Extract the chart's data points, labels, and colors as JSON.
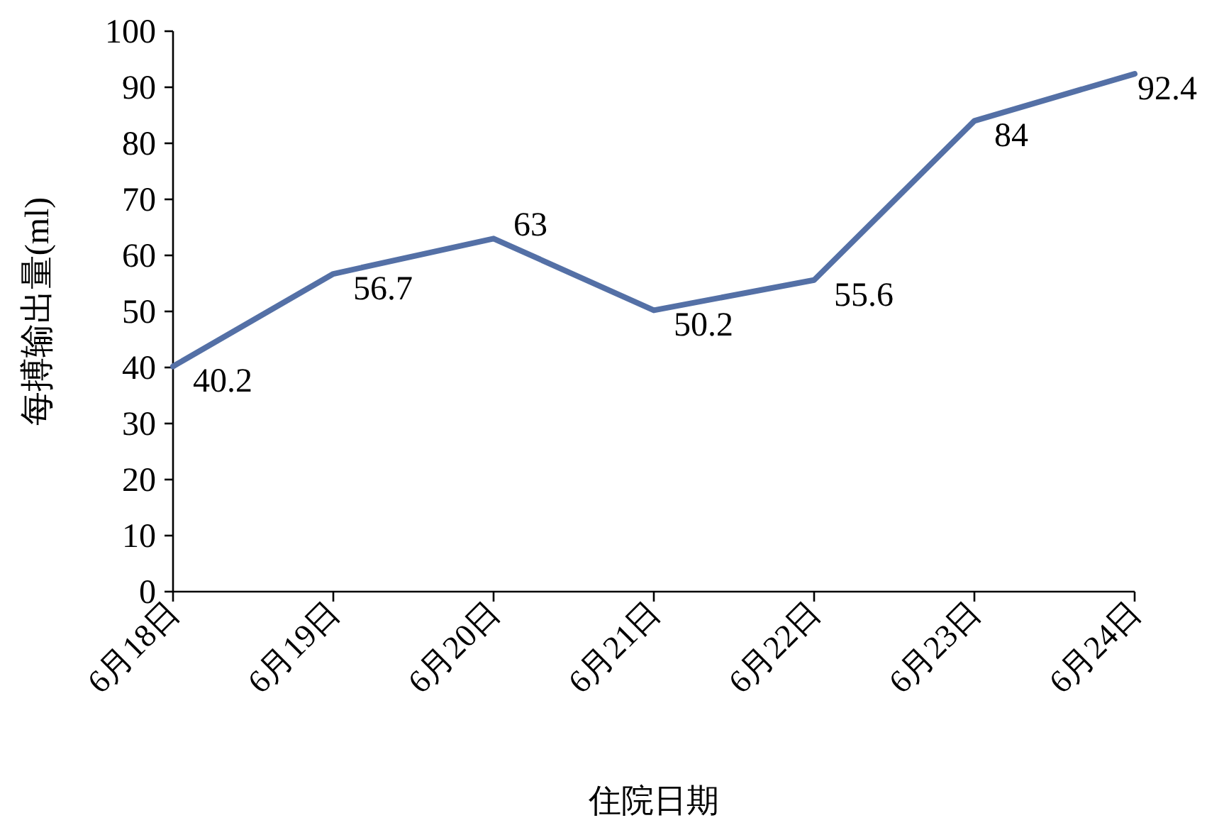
{
  "chart_data": {
    "type": "line",
    "xlabel": "住院日期",
    "ylabel": "每搏输出量(ml)",
    "categories": [
      "6月18日",
      "6月19日",
      "6月20日",
      "6月21日",
      "6月22日",
      "6月23日",
      "6月24日"
    ],
    "series": [
      {
        "color": "#5470a6",
        "values": [
          40.2,
          56.7,
          63,
          50.2,
          55.6,
          84,
          92.4
        ]
      }
    ],
    "ylim": [
      0,
      100
    ],
    "yticks": [
      0,
      10,
      20,
      30,
      40,
      50,
      60,
      70,
      80,
      90,
      100
    ],
    "data_labels": true,
    "grid": false,
    "marker": "none",
    "line_style": "solid"
  }
}
